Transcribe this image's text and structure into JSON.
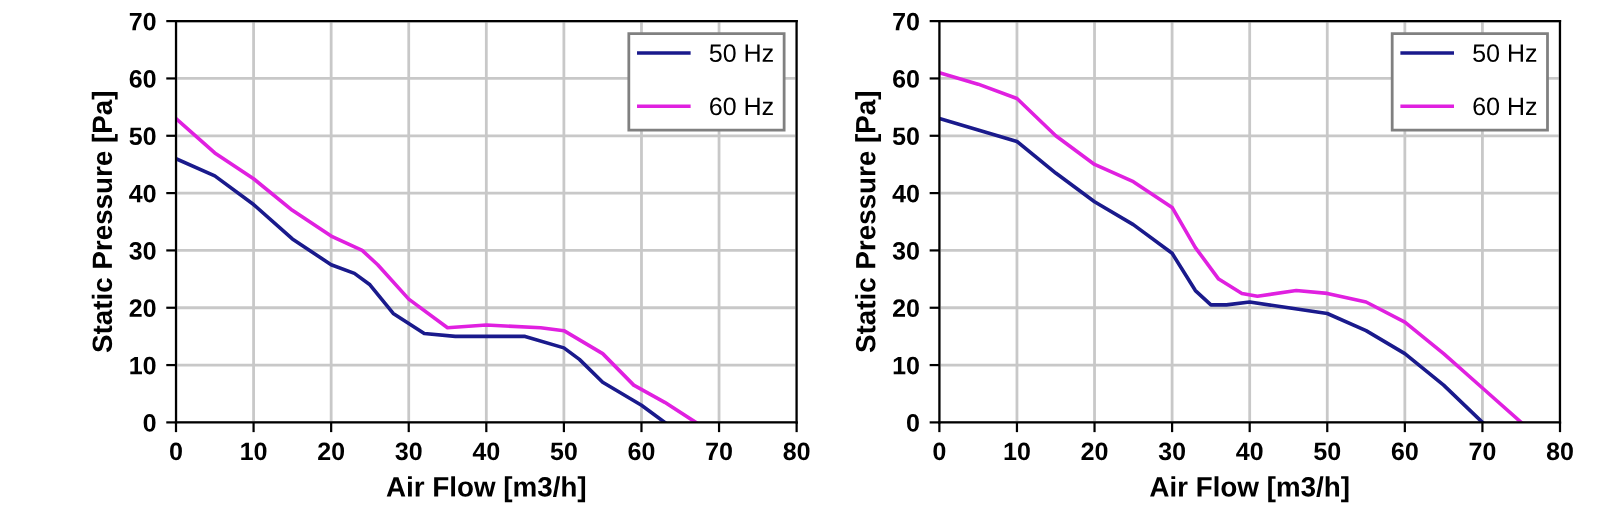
{
  "chart_data": [
    {
      "type": "line",
      "xlabel": "Air Flow [m3/h]",
      "ylabel": "Static Pressure [Pa]",
      "xlim": [
        0,
        80
      ],
      "xticks": [
        0,
        10,
        20,
        30,
        40,
        50,
        60,
        70,
        80
      ],
      "ylim": [
        0,
        70
      ],
      "yticks": [
        0,
        10,
        20,
        30,
        40,
        50,
        60,
        70
      ],
      "grid": true,
      "legend": "top right",
      "series": [
        {
          "name": "50 Hz",
          "color": "#1a1a8c",
          "x": [
            0,
            5,
            10,
            15,
            20,
            23,
            25,
            28,
            32,
            36,
            45,
            50,
            52,
            55,
            60,
            63
          ],
          "values": [
            46,
            43,
            38,
            32,
            27.5,
            26,
            24,
            19,
            15.5,
            15,
            15,
            13,
            11,
            7,
            3,
            0
          ]
        },
        {
          "name": "60 Hz",
          "color": "#e020e0",
          "x": [
            0,
            5,
            10,
            15,
            20,
            24,
            26,
            30,
            35,
            40,
            47,
            50,
            55,
            59,
            63,
            67
          ],
          "values": [
            53,
            47,
            42.5,
            37,
            32.5,
            30,
            27.5,
            21.5,
            16.5,
            17,
            16.5,
            16,
            12,
            6.5,
            3.5,
            0
          ]
        }
      ]
    },
    {
      "type": "line",
      "xlabel": "Air Flow [m3/h]",
      "ylabel": "Static Pressure [Pa]",
      "xlim": [
        0,
        80
      ],
      "xticks": [
        0,
        10,
        20,
        30,
        40,
        50,
        60,
        70,
        80
      ],
      "ylim": [
        0,
        70
      ],
      "yticks": [
        0,
        10,
        20,
        30,
        40,
        50,
        60,
        70
      ],
      "grid": true,
      "legend": "top right",
      "series": [
        {
          "name": "50 Hz",
          "color": "#1a1a8c",
          "x": [
            0,
            5,
            10,
            15,
            20,
            25,
            30,
            33,
            35,
            37,
            40,
            45,
            50,
            55,
            60,
            65,
            70
          ],
          "values": [
            53,
            51,
            49,
            43.5,
            38.5,
            34.5,
            29.5,
            23,
            20.5,
            20.5,
            21,
            20,
            19,
            16,
            12,
            6.5,
            0
          ]
        },
        {
          "name": "60 Hz",
          "color": "#e020e0",
          "x": [
            0,
            5,
            10,
            15,
            20,
            25,
            30,
            33,
            36,
            39,
            41,
            46,
            50,
            55,
            60,
            65,
            70,
            75
          ],
          "values": [
            61,
            59,
            56.5,
            50,
            45,
            42,
            37.5,
            30.5,
            25,
            22.5,
            22,
            23,
            22.5,
            21,
            17.5,
            12,
            6,
            0
          ]
        }
      ]
    }
  ]
}
